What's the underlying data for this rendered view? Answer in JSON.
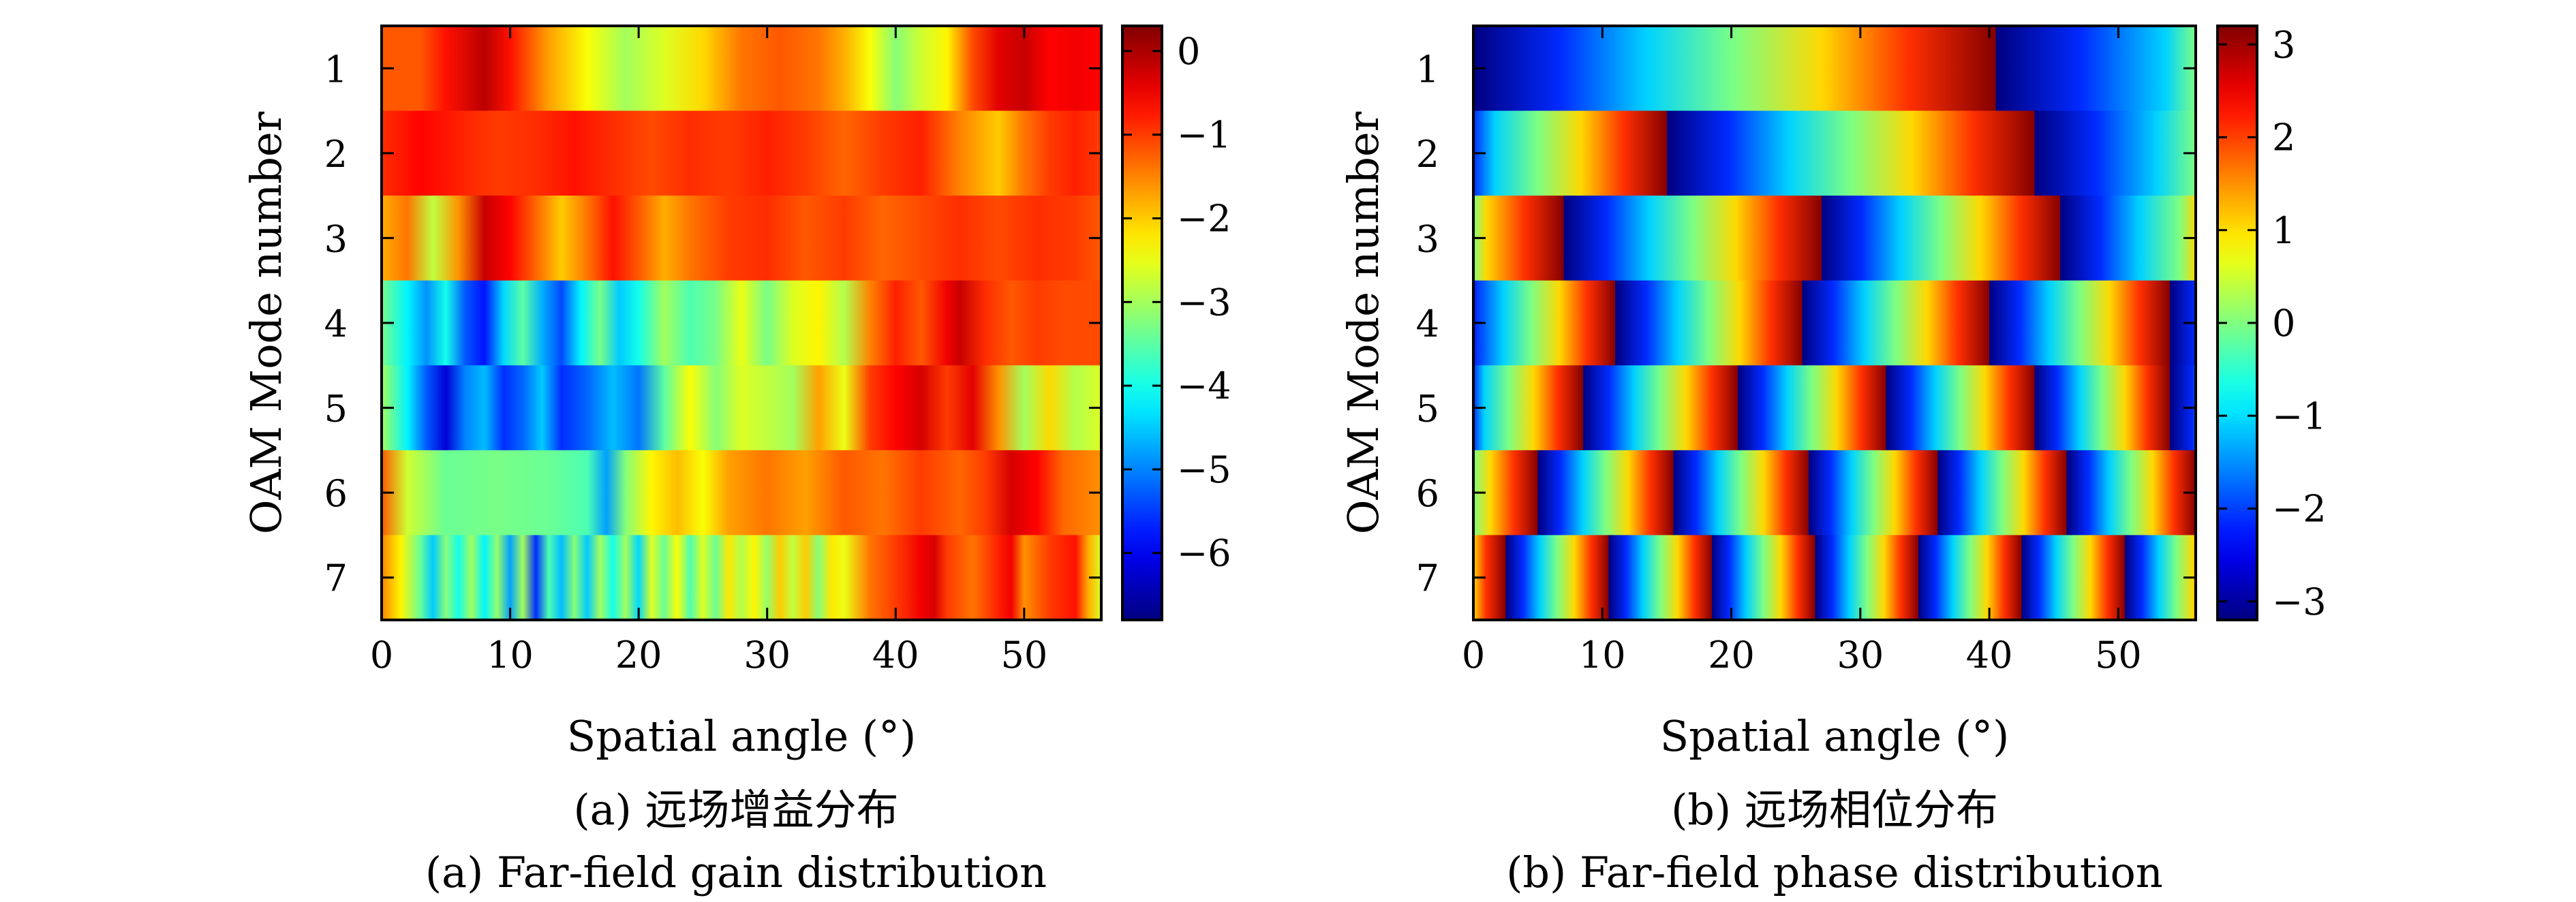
{
  "chart_data": [
    {
      "type": "heatmap",
      "xlabel": "Spatial angle (°)",
      "ylabel": "OAM Mode number",
      "caption_cn": "(a) 远场增益分布",
      "caption_en": "(a) Far-field gain distribution",
      "x_ticks": [
        0,
        10,
        20,
        30,
        40,
        50
      ],
      "xlim": [
        0,
        56
      ],
      "y_categories": [
        "1",
        "2",
        "3",
        "4",
        "5",
        "6",
        "7"
      ],
      "colorbar_ticks": [
        "0",
        "−1",
        "−2",
        "−3",
        "−4",
        "−5",
        "−6"
      ],
      "colorbar_tick_values": [
        0,
        -1,
        -2,
        -3,
        -4,
        -5,
        -6
      ],
      "colorbar_range": [
        -6.8,
        0.3
      ],
      "colormap": "jet",
      "rows": [
        {
          "mode": 1,
          "points": [
            [
              0,
              -1.2
            ],
            [
              3,
              -1.2
            ],
            [
              5,
              -0.7
            ],
            [
              8,
              -0.1
            ],
            [
              10,
              -0.7
            ],
            [
              13,
              -1.7
            ],
            [
              16,
              -2.4
            ],
            [
              19,
              -3.0
            ],
            [
              22,
              -2.6
            ],
            [
              25,
              -2.1
            ],
            [
              28,
              -1.4
            ],
            [
              31,
              -1.2
            ],
            [
              34,
              -1.4
            ],
            [
              36,
              -1.8
            ],
            [
              38,
              -2.4
            ],
            [
              40,
              -3.2
            ],
            [
              42,
              -2.7
            ],
            [
              44,
              -2.3
            ],
            [
              46,
              -1.1
            ],
            [
              48,
              -0.4
            ],
            [
              50,
              -0.2
            ],
            [
              52,
              -0.6
            ],
            [
              54,
              -0.5
            ],
            [
              56,
              -0.6
            ]
          ]
        },
        {
          "mode": 2,
          "points": [
            [
              0,
              -0.9
            ],
            [
              3,
              -0.6
            ],
            [
              6,
              -0.8
            ],
            [
              9,
              -1.0
            ],
            [
              12,
              -0.9
            ],
            [
              15,
              -0.7
            ],
            [
              18,
              -0.9
            ],
            [
              21,
              -1.1
            ],
            [
              24,
              -0.9
            ],
            [
              27,
              -1.0
            ],
            [
              30,
              -0.8
            ],
            [
              33,
              -1.0
            ],
            [
              36,
              -1.3
            ],
            [
              39,
              -1.0
            ],
            [
              42,
              -0.8
            ],
            [
              45,
              -1.5
            ],
            [
              48,
              -2.0
            ],
            [
              50,
              -1.4
            ],
            [
              52,
              -1.0
            ],
            [
              54,
              -0.8
            ],
            [
              56,
              -1.0
            ]
          ]
        },
        {
          "mode": 3,
          "points": [
            [
              0,
              -1.8
            ],
            [
              2,
              -1.4
            ],
            [
              4,
              -2.8
            ],
            [
              6,
              -1.6
            ],
            [
              8,
              -0.2
            ],
            [
              10,
              -0.6
            ],
            [
              12,
              -1.3
            ],
            [
              14,
              -2.0
            ],
            [
              16,
              -1.4
            ],
            [
              18,
              -0.7
            ],
            [
              20,
              -1.2
            ],
            [
              22,
              -1.8
            ],
            [
              24,
              -1.4
            ],
            [
              27,
              -1.0
            ],
            [
              30,
              -0.9
            ],
            [
              33,
              -1.2
            ],
            [
              36,
              -1.0
            ],
            [
              39,
              -1.3
            ],
            [
              42,
              -1.1
            ],
            [
              45,
              -0.9
            ],
            [
              48,
              -1.1
            ],
            [
              51,
              -0.9
            ],
            [
              54,
              -1.0
            ],
            [
              56,
              -1.2
            ]
          ]
        },
        {
          "mode": 4,
          "points": [
            [
              0,
              -3.3
            ],
            [
              2,
              -4.2
            ],
            [
              3.5,
              -4.9
            ],
            [
              5,
              -4.0
            ],
            [
              6.5,
              -5.3
            ],
            [
              8,
              -5.8
            ],
            [
              9.5,
              -4.4
            ],
            [
              11,
              -3.5
            ],
            [
              12.5,
              -4.7
            ],
            [
              14,
              -5.4
            ],
            [
              15.5,
              -4.2
            ],
            [
              17,
              -3.3
            ],
            [
              18.5,
              -4.5
            ],
            [
              20,
              -4.0
            ],
            [
              22,
              -3.0
            ],
            [
              24,
              -3.6
            ],
            [
              26,
              -3.3
            ],
            [
              28,
              -2.5
            ],
            [
              30,
              -3.3
            ],
            [
              32,
              -2.6
            ],
            [
              34,
              -2.3
            ],
            [
              36,
              -2.9
            ],
            [
              38,
              -1.5
            ],
            [
              40,
              -0.8
            ],
            [
              42,
              -1.2
            ],
            [
              44,
              -0.5
            ],
            [
              45,
              -0.2
            ],
            [
              47,
              -0.9
            ],
            [
              49,
              -1.2
            ],
            [
              51,
              -1.0
            ],
            [
              53,
              -1.1
            ],
            [
              56,
              -1.1
            ]
          ]
        },
        {
          "mode": 5,
          "points": [
            [
              0,
              -3.0
            ],
            [
              2,
              -4.2
            ],
            [
              3.5,
              -5.3
            ],
            [
              5,
              -6.2
            ],
            [
              6.5,
              -5.0
            ],
            [
              8,
              -4.6
            ],
            [
              9.5,
              -5.6
            ],
            [
              11,
              -5.2
            ],
            [
              12.5,
              -4.5
            ],
            [
              14,
              -5.6
            ],
            [
              16,
              -5.2
            ],
            [
              18,
              -4.6
            ],
            [
              20,
              -5.1
            ],
            [
              22,
              -3.5
            ],
            [
              24,
              -2.4
            ],
            [
              26,
              -3.2
            ],
            [
              28,
              -2.6
            ],
            [
              30,
              -2.8
            ],
            [
              32,
              -3.0
            ],
            [
              34,
              -1.7
            ],
            [
              36,
              -2.5
            ],
            [
              38,
              -1.0
            ],
            [
              40,
              -0.6
            ],
            [
              42,
              -0.3
            ],
            [
              44,
              -1.0
            ],
            [
              46,
              -0.4
            ],
            [
              48,
              -1.6
            ],
            [
              50,
              -3.0
            ],
            [
              52,
              -2.1
            ],
            [
              54,
              -2.9
            ],
            [
              56,
              -2.6
            ]
          ]
        },
        {
          "mode": 6,
          "points": [
            [
              0,
              -1.2
            ],
            [
              2,
              -2.7
            ],
            [
              5,
              -3.4
            ],
            [
              9,
              -3.3
            ],
            [
              13,
              -3.4
            ],
            [
              16,
              -3.6
            ],
            [
              17.5,
              -4.8
            ],
            [
              19,
              -3.2
            ],
            [
              21,
              -2.3
            ],
            [
              23,
              -1.9
            ],
            [
              25,
              -2.4
            ],
            [
              27,
              -1.7
            ],
            [
              30,
              -1.4
            ],
            [
              33,
              -1.7
            ],
            [
              36,
              -1.2
            ],
            [
              39,
              -1.4
            ],
            [
              42,
              -1.0
            ],
            [
              45,
              -1.3
            ],
            [
              47,
              -1.0
            ],
            [
              49,
              -0.3
            ],
            [
              51,
              -0.6
            ],
            [
              53,
              -1.3
            ],
            [
              56,
              -1.6
            ]
          ]
        },
        {
          "mode": 7,
          "points": [
            [
              0,
              -1.5
            ],
            [
              1.5,
              -2.3
            ],
            [
              3,
              -3.4
            ],
            [
              4,
              -4.5
            ],
            [
              5,
              -3.2
            ],
            [
              6,
              -4.0
            ],
            [
              7,
              -3.0
            ],
            [
              8,
              -4.2
            ],
            [
              9,
              -3.1
            ],
            [
              10,
              -4.8
            ],
            [
              11,
              -3.0
            ],
            [
              12,
              -5.6
            ],
            [
              13,
              -3.6
            ],
            [
              14,
              -4.6
            ],
            [
              15,
              -3.2
            ],
            [
              16,
              -4.5
            ],
            [
              17,
              -3.0
            ],
            [
              18,
              -4.0
            ],
            [
              19,
              -3.0
            ],
            [
              20,
              -4.4
            ],
            [
              21,
              -2.6
            ],
            [
              22,
              -3.4
            ],
            [
              23,
              -2.4
            ],
            [
              24,
              -3.6
            ],
            [
              25,
              -2.6
            ],
            [
              26,
              -3.4
            ],
            [
              27,
              -2.2
            ],
            [
              28,
              -2.9
            ],
            [
              29,
              -2.3
            ],
            [
              30,
              -3.1
            ],
            [
              31,
              -2.0
            ],
            [
              32,
              -2.8
            ],
            [
              33,
              -2.0
            ],
            [
              34,
              -3.2
            ],
            [
              35,
              -2.2
            ],
            [
              36,
              -2.5
            ],
            [
              38,
              -1.4
            ],
            [
              40,
              -1.0
            ],
            [
              42,
              -0.5
            ],
            [
              43,
              -0.3
            ],
            [
              44,
              -1.0
            ],
            [
              46,
              -1.4
            ],
            [
              48,
              -0.8
            ],
            [
              49,
              -0.5
            ],
            [
              50,
              -1.6
            ],
            [
              52,
              -1.0
            ],
            [
              54,
              -0.7
            ],
            [
              55,
              -1.8
            ],
            [
              56,
              -2.6
            ]
          ]
        }
      ]
    },
    {
      "type": "heatmap",
      "xlabel": "Spatial angle (°)",
      "ylabel": "OAM Mode number",
      "caption_cn": "(b) 远场相位分布",
      "caption_en": "(b) Far-field phase distribution",
      "x_ticks": [
        0,
        10,
        20,
        30,
        40,
        50
      ],
      "xlim": [
        0,
        56
      ],
      "y_categories": [
        "1",
        "2",
        "3",
        "4",
        "5",
        "6",
        "7"
      ],
      "colorbar_ticks": [
        "3",
        "2",
        "1",
        "0",
        "−1",
        "−2",
        "−3"
      ],
      "colorbar_tick_values": [
        3,
        2,
        1,
        0,
        -1,
        -2,
        -3
      ],
      "colorbar_range": [
        -3.2,
        3.2
      ],
      "colormap": "jet",
      "rows": [
        {
          "mode": 1,
          "ramps": [
            [
              0,
              40.5
            ],
            [
              40.5,
              80
            ]
          ],
          "phase_start": -0.6
        },
        {
          "mode": 2,
          "ramps": [
            [
              -5,
              15
            ],
            [
              15,
              43.5
            ],
            [
              43.5,
              72
            ]
          ],
          "phase_start": 0.2
        },
        {
          "mode": 3,
          "ramps": [
            [
              -11,
              7
            ],
            [
              7,
              27
            ],
            [
              27,
              45.5
            ],
            [
              45.5,
              64
            ]
          ],
          "phase_start": 1.2
        },
        {
          "mode": 4,
          "ramps": [
            [
              -2,
              11
            ],
            [
              11,
              25.5
            ],
            [
              25.5,
              40
            ],
            [
              40,
              54
            ],
            [
              54,
              68
            ]
          ],
          "phase_start": -0.7
        },
        {
          "mode": 5,
          "ramps": [
            [
              -3,
              8.5
            ],
            [
              8.5,
              20.5
            ],
            [
              20.5,
              32
            ],
            [
              32,
              43.5
            ],
            [
              43.5,
              54
            ],
            [
              54,
              65
            ]
          ],
          "phase_start": -0.6
        },
        {
          "mode": 6,
          "ramps": [
            [
              -6,
              5
            ],
            [
              5,
              15.5
            ],
            [
              15.5,
              26
            ],
            [
              26,
              36
            ],
            [
              36,
              46
            ],
            [
              46,
              56
            ],
            [
              56,
              66
            ]
          ],
          "phase_start": 0.0
        },
        {
          "mode": 7,
          "ramps": [
            [
              -6.5,
              2.5
            ],
            [
              2.5,
              10.5
            ],
            [
              10.5,
              18.5
            ],
            [
              18.5,
              26.5
            ],
            [
              26.5,
              34.5
            ],
            [
              34.5,
              42.5
            ],
            [
              42.5,
              50.5
            ],
            [
              50.5,
              58.5
            ]
          ],
          "phase_start": 0.3
        }
      ]
    }
  ]
}
